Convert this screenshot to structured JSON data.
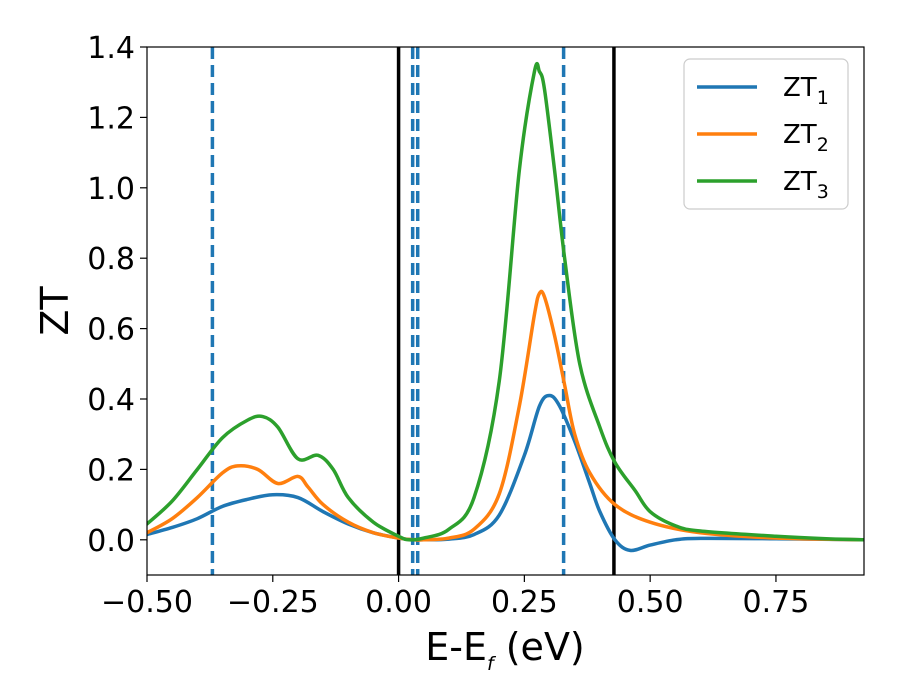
{
  "chart_data": {
    "type": "line",
    "xlabel": {
      "base": "E-E",
      "sub": "f",
      "tail": " (eV)"
    },
    "ylabel": "ZT",
    "xlim": [
      -0.5,
      0.925
    ],
    "ylim": [
      -0.1,
      1.4
    ],
    "xticks": [
      -0.5,
      -0.25,
      0.0,
      0.25,
      0.5,
      0.75
    ],
    "xtick_labels": [
      "−0.50",
      "−0.25",
      "0.00",
      "0.25",
      "0.50",
      "0.75"
    ],
    "yticks": [
      0.0,
      0.2,
      0.4,
      0.6,
      0.8,
      1.0,
      1.2,
      1.4
    ],
    "ytick_labels": [
      "0.0",
      "0.2",
      "0.4",
      "0.6",
      "0.8",
      "1.0",
      "1.2",
      "1.4"
    ],
    "legend_position": "top-right",
    "grid": false,
    "vertical_lines": [
      {
        "x": -0.37,
        "style": "dashed",
        "color": "#1f77b4"
      },
      {
        "x": 0.028,
        "style": "dashed",
        "color": "#1f77b4"
      },
      {
        "x": 0.038,
        "style": "dashed",
        "color": "#1f77b4"
      },
      {
        "x": 0.328,
        "style": "dashed",
        "color": "#1f77b4"
      },
      {
        "x": 0.0,
        "style": "solid",
        "color": "#000000"
      },
      {
        "x": 0.428,
        "style": "solid",
        "color": "#000000"
      }
    ],
    "series": [
      {
        "name": "ZT",
        "name_sub": "1",
        "color": "#1f77b4",
        "points": [
          [
            -0.5,
            0.015
          ],
          [
            -0.45,
            0.035
          ],
          [
            -0.4,
            0.06
          ],
          [
            -0.35,
            0.095
          ],
          [
            -0.3,
            0.115
          ],
          [
            -0.25,
            0.128
          ],
          [
            -0.2,
            0.12
          ],
          [
            -0.15,
            0.08
          ],
          [
            -0.1,
            0.045
          ],
          [
            -0.05,
            0.02
          ],
          [
            0.0,
            0.005
          ],
          [
            0.03,
            0.0
          ],
          [
            0.05,
            0.0
          ],
          [
            0.1,
            0.002
          ],
          [
            0.15,
            0.015
          ],
          [
            0.2,
            0.07
          ],
          [
            0.25,
            0.24
          ],
          [
            0.28,
            0.38
          ],
          [
            0.3,
            0.41
          ],
          [
            0.32,
            0.38
          ],
          [
            0.35,
            0.28
          ],
          [
            0.38,
            0.16
          ],
          [
            0.4,
            0.08
          ],
          [
            0.43,
            0.0
          ],
          [
            0.46,
            -0.03
          ],
          [
            0.5,
            -0.015
          ],
          [
            0.55,
            0.0
          ],
          [
            0.6,
            0.004
          ],
          [
            0.75,
            0.003
          ],
          [
            0.925,
            0.0
          ]
        ]
      },
      {
        "name": "ZT",
        "name_sub": "2",
        "color": "#ff7f0e",
        "points": [
          [
            -0.5,
            0.02
          ],
          [
            -0.45,
            0.06
          ],
          [
            -0.4,
            0.12
          ],
          [
            -0.35,
            0.19
          ],
          [
            -0.32,
            0.21
          ],
          [
            -0.28,
            0.2
          ],
          [
            -0.24,
            0.16
          ],
          [
            -0.2,
            0.18
          ],
          [
            -0.18,
            0.15
          ],
          [
            -0.15,
            0.1
          ],
          [
            -0.1,
            0.05
          ],
          [
            -0.05,
            0.02
          ],
          [
            0.0,
            0.005
          ],
          [
            0.03,
            0.0
          ],
          [
            0.05,
            0.0
          ],
          [
            0.1,
            0.005
          ],
          [
            0.15,
            0.03
          ],
          [
            0.2,
            0.13
          ],
          [
            0.24,
            0.38
          ],
          [
            0.27,
            0.64
          ],
          [
            0.28,
            0.7
          ],
          [
            0.29,
            0.69
          ],
          [
            0.31,
            0.58
          ],
          [
            0.33,
            0.44
          ],
          [
            0.35,
            0.3
          ],
          [
            0.38,
            0.19
          ],
          [
            0.43,
            0.1
          ],
          [
            0.5,
            0.05
          ],
          [
            0.6,
            0.02
          ],
          [
            0.75,
            0.005
          ],
          [
            0.925,
            0.0
          ]
        ]
      },
      {
        "name": "ZT",
        "name_sub": "3",
        "color": "#2ca02c",
        "points": [
          [
            -0.5,
            0.045
          ],
          [
            -0.45,
            0.11
          ],
          [
            -0.4,
            0.2
          ],
          [
            -0.35,
            0.29
          ],
          [
            -0.3,
            0.34
          ],
          [
            -0.27,
            0.35
          ],
          [
            -0.24,
            0.32
          ],
          [
            -0.2,
            0.23
          ],
          [
            -0.16,
            0.24
          ],
          [
            -0.13,
            0.2
          ],
          [
            -0.1,
            0.12
          ],
          [
            -0.05,
            0.05
          ],
          [
            0.0,
            0.01
          ],
          [
            0.02,
            0.0
          ],
          [
            0.05,
            0.005
          ],
          [
            0.1,
            0.03
          ],
          [
            0.15,
            0.12
          ],
          [
            0.2,
            0.45
          ],
          [
            0.24,
            1.05
          ],
          [
            0.27,
            1.33
          ],
          [
            0.28,
            1.33
          ],
          [
            0.29,
            1.28
          ],
          [
            0.31,
            1.05
          ],
          [
            0.33,
            0.8
          ],
          [
            0.36,
            0.5
          ],
          [
            0.4,
            0.32
          ],
          [
            0.43,
            0.22
          ],
          [
            0.47,
            0.14
          ],
          [
            0.5,
            0.08
          ],
          [
            0.55,
            0.04
          ],
          [
            0.6,
            0.025
          ],
          [
            0.75,
            0.01
          ],
          [
            0.85,
            0.003
          ],
          [
            0.925,
            0.0
          ]
        ]
      }
    ]
  }
}
